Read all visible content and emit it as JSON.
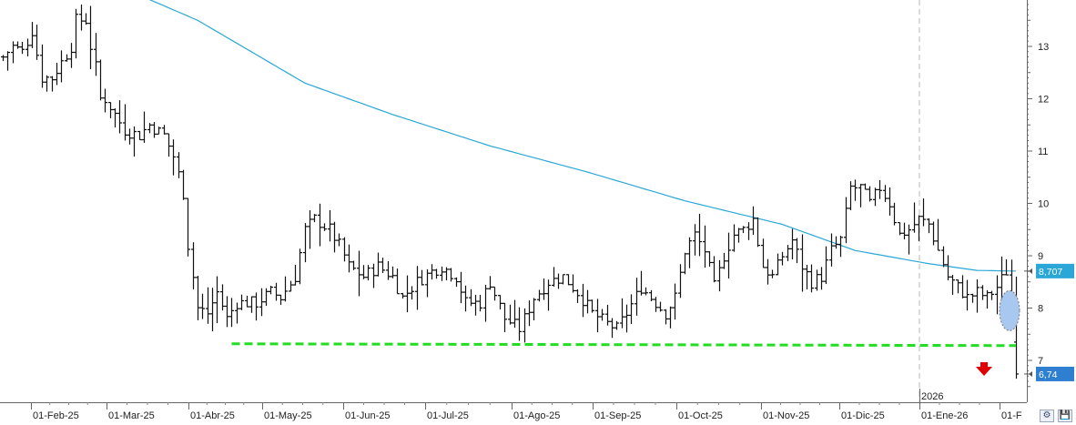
{
  "chart_data": {
    "type": "ohlc_bar",
    "y_ticks": [
      "7",
      "8",
      "9",
      "10",
      "11",
      "12",
      "13"
    ],
    "ylim": [
      6.3,
      14.0
    ],
    "x_tick_labels": [
      "01-Feb-25",
      "01-Mar-25",
      "01-Abr-25",
      "01-May-25",
      "01-Jun-25",
      "01-Jul-25",
      "01-Ago-25",
      "01-Sep-25",
      "01-Oct-25",
      "01-Nov-25",
      "01-Dic-25",
      "01-Ene-26",
      "01-F"
    ],
    "year_label": "2026",
    "last_price_label": "6,74",
    "moving_average_label": "8,707",
    "colors": {
      "bars": "#111111",
      "moving_average": "#2aa7d6",
      "support_line": "#22dd22",
      "highlight": "#a9c8ef",
      "arrow": "#e00000",
      "price_tag": "#2f7fd0"
    },
    "price_anchors": [
      [
        0,
        12.8
      ],
      [
        2,
        13.0
      ],
      [
        4,
        12.9
      ],
      [
        6,
        13.3
      ],
      [
        8,
        12.4
      ],
      [
        10,
        12.4
      ],
      [
        12,
        12.7
      ],
      [
        14,
        13.0
      ],
      [
        15,
        13.5
      ],
      [
        17,
        13.5
      ],
      [
        18,
        13.0
      ],
      [
        19,
        12.6
      ],
      [
        20,
        12.0
      ],
      [
        21,
        12.0
      ],
      [
        23,
        11.7
      ],
      [
        25,
        11.4
      ],
      [
        28,
        11.3
      ],
      [
        30,
        11.5
      ],
      [
        33,
        11.3
      ],
      [
        35,
        10.9
      ],
      [
        37,
        10.2
      ],
      [
        38,
        9.2
      ],
      [
        40,
        8.0
      ],
      [
        42,
        7.9
      ],
      [
        44,
        8.3
      ],
      [
        46,
        7.8
      ],
      [
        48,
        8.1
      ],
      [
        52,
        8.1
      ],
      [
        55,
        8.3
      ],
      [
        57,
        8.2
      ],
      [
        60,
        8.6
      ],
      [
        62,
        9.5
      ],
      [
        64,
        9.7
      ],
      [
        67,
        9.5
      ],
      [
        69,
        9.2
      ],
      [
        71,
        8.8
      ],
      [
        74,
        8.6
      ],
      [
        77,
        8.8
      ],
      [
        80,
        8.6
      ],
      [
        82,
        8.2
      ],
      [
        85,
        8.5
      ],
      [
        88,
        8.7
      ],
      [
        90,
        8.8
      ],
      [
        93,
        8.6
      ],
      [
        95,
        8.1
      ],
      [
        98,
        8.1
      ],
      [
        100,
        8.5
      ],
      [
        103,
        7.8
      ],
      [
        106,
        7.6
      ],
      [
        109,
        8.2
      ],
      [
        112,
        8.5
      ],
      [
        115,
        8.6
      ],
      [
        118,
        8.3
      ],
      [
        121,
        7.9
      ],
      [
        124,
        7.7
      ],
      [
        126,
        7.6
      ],
      [
        128,
        7.9
      ],
      [
        131,
        8.4
      ],
      [
        134,
        8.1
      ],
      [
        136,
        7.9
      ],
      [
        138,
        8.2
      ],
      [
        140,
        9.1
      ],
      [
        142,
        9.4
      ],
      [
        144,
        9.1
      ],
      [
        146,
        8.4
      ],
      [
        148,
        9.0
      ],
      [
        150,
        9.4
      ],
      [
        152,
        9.5
      ],
      [
        154,
        9.7
      ],
      [
        156,
        8.8
      ],
      [
        158,
        8.6
      ],
      [
        160,
        9.0
      ],
      [
        162,
        9.3
      ],
      [
        164,
        8.8
      ],
      [
        166,
        8.5
      ],
      [
        168,
        8.6
      ],
      [
        170,
        9.1
      ],
      [
        172,
        9.3
      ],
      [
        174,
        10.3
      ],
      [
        176,
        10.3
      ],
      [
        178,
        10.0
      ],
      [
        180,
        10.3
      ],
      [
        182,
        10.0
      ],
      [
        184,
        9.4
      ],
      [
        186,
        9.5
      ],
      [
        188,
        9.7
      ],
      [
        190,
        9.6
      ],
      [
        192,
        9.1
      ],
      [
        194,
        8.6
      ],
      [
        196,
        8.4
      ],
      [
        198,
        8.2
      ],
      [
        200,
        8.3
      ],
      [
        202,
        8.2
      ],
      [
        204,
        8.4
      ],
      [
        206,
        8.7
      ],
      [
        207,
        8.3
      ],
      [
        208,
        6.74
      ]
    ],
    "moving_average_anchors": [
      [
        0,
        14.5
      ],
      [
        20,
        14.3
      ],
      [
        40,
        13.5
      ],
      [
        62,
        12.3
      ],
      [
        80,
        11.7
      ],
      [
        100,
        11.1
      ],
      [
        120,
        10.6
      ],
      [
        140,
        10.05
      ],
      [
        160,
        9.6
      ],
      [
        175,
        9.1
      ],
      [
        190,
        8.85
      ],
      [
        200,
        8.72
      ],
      [
        208,
        8.707
      ]
    ],
    "support_line": {
      "from_bar": 47,
      "to_bar": 208,
      "value": 7.3
    },
    "highlight_value": 7.95,
    "bar_count": 209
  },
  "toolbar": {
    "settings_label": "⚙",
    "save_label": "💾"
  }
}
